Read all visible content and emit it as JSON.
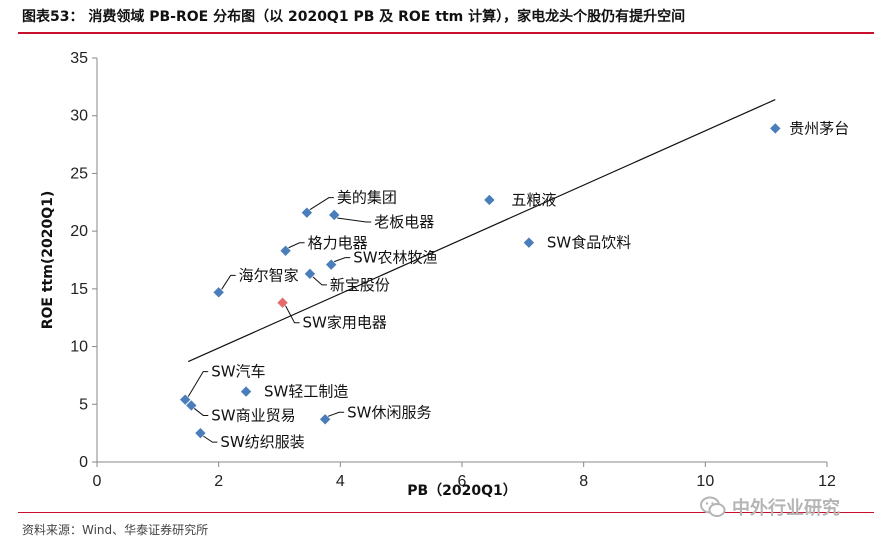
{
  "figure": {
    "title": "图表53： 消费领域 PB-ROE 分布图（以 2020Q1 PB 及 ROE ttm 计算），家电龙头个股仍有提升空间",
    "source": "资料来源：Wind、华泰证券研究所",
    "watermark": "中外行业研究",
    "watermark_icon": "wechat-icon"
  },
  "chart_data": {
    "type": "scatter",
    "xlabel": "PB（2020Q1）",
    "ylabel": "ROE ttm(2020Q1)",
    "xlim": [
      0,
      12
    ],
    "ylim": [
      0,
      35
    ],
    "xticks": [
      0,
      2,
      4,
      6,
      8,
      10,
      12
    ],
    "yticks": [
      0,
      5,
      10,
      15,
      20,
      25,
      30,
      35
    ],
    "grid": false,
    "legend": "none",
    "point_color": "#4a7ebb",
    "highlight_color": "#e46c6c",
    "points": [
      {
        "name": "贵州茅台",
        "x": 11.15,
        "y": 28.9
      },
      {
        "name": "五粮液",
        "x": 6.45,
        "y": 22.7
      },
      {
        "name": "SW食品饮料",
        "x": 7.1,
        "y": 19.0
      },
      {
        "name": "美的集团",
        "x": 3.45,
        "y": 21.6
      },
      {
        "name": "老板电器",
        "x": 3.9,
        "y": 21.4
      },
      {
        "name": "格力电器",
        "x": 3.1,
        "y": 18.3
      },
      {
        "name": "SW农林牧渔",
        "x": 3.85,
        "y": 17.1
      },
      {
        "name": "新宝股份",
        "x": 3.5,
        "y": 16.3
      },
      {
        "name": "海尔智家",
        "x": 2.0,
        "y": 14.7
      },
      {
        "name": "SW家用电器",
        "x": 3.05,
        "y": 13.8,
        "highlight": true
      },
      {
        "name": "SW汽车",
        "x": 1.45,
        "y": 5.4
      },
      {
        "name": "SW轻工制造",
        "x": 2.45,
        "y": 6.1
      },
      {
        "name": "SW商业贸易",
        "x": 1.55,
        "y": 4.9
      },
      {
        "name": "SW休闲服务",
        "x": 3.75,
        "y": 3.7
      },
      {
        "name": "SW纺织服装",
        "x": 1.7,
        "y": 2.5
      }
    ],
    "trendline": {
      "x": [
        1.5,
        11.15
      ],
      "y": [
        8.7,
        31.4
      ]
    }
  }
}
